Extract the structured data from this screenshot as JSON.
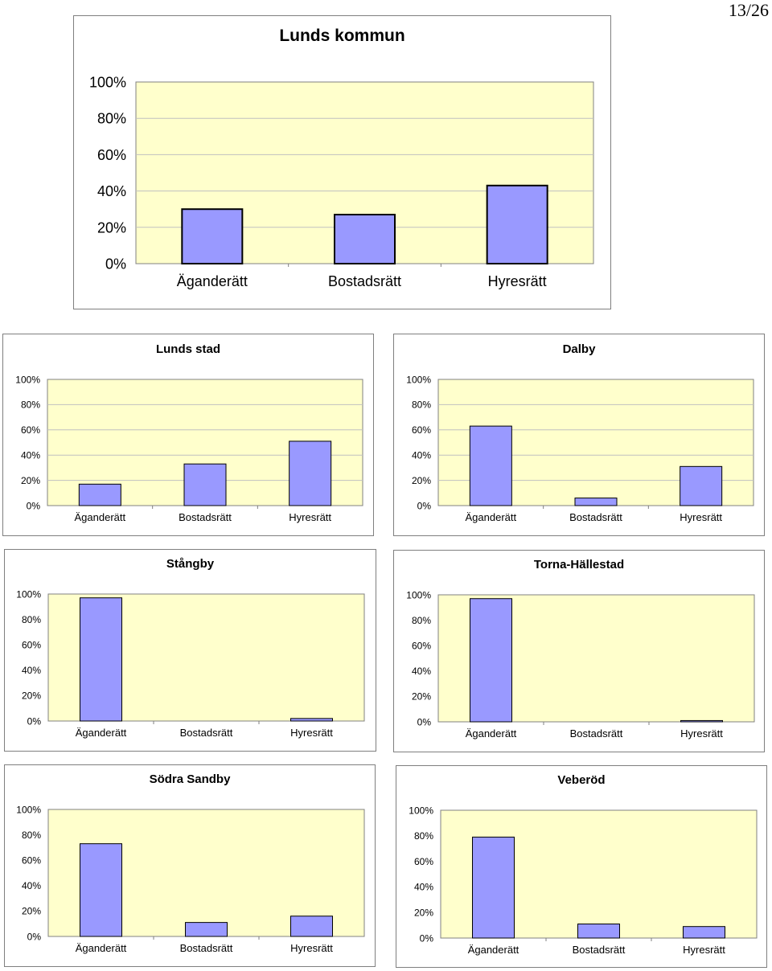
{
  "page_number": "13/26",
  "colors": {
    "plot_bg": "#ffffcc",
    "bar_fill": "#9999ff",
    "bar_stroke": "#000000",
    "grid": "#c0c0c0",
    "axis": "#808080"
  },
  "chart_data": [
    {
      "type": "bar",
      "title": "Lunds kommun",
      "categories": [
        "Äganderätt",
        "Bostadsrätt",
        "Hyresrätt"
      ],
      "values": [
        30,
        27,
        43
      ],
      "yticks": [
        "0%",
        "20%",
        "40%",
        "60%",
        "80%",
        "100%"
      ],
      "ylim": [
        0,
        100
      ],
      "grid": true,
      "legend": false
    },
    {
      "type": "bar",
      "title": "Lunds stad",
      "categories": [
        "Äganderätt",
        "Bostadsrätt",
        "Hyresrätt"
      ],
      "values": [
        17,
        33,
        51
      ],
      "yticks": [
        "0%",
        "20%",
        "40%",
        "60%",
        "80%",
        "100%"
      ],
      "ylim": [
        0,
        100
      ],
      "grid": true,
      "legend": false
    },
    {
      "type": "bar",
      "title": "Dalby",
      "categories": [
        "Äganderätt",
        "Bostadsrätt",
        "Hyresrätt"
      ],
      "values": [
        63,
        6,
        31
      ],
      "yticks": [
        "0%",
        "20%",
        "40%",
        "60%",
        "80%",
        "100%"
      ],
      "ylim": [
        0,
        100
      ],
      "grid": true,
      "legend": false
    },
    {
      "type": "bar",
      "title": "Stångby",
      "categories": [
        "Äganderätt",
        "Bostadsrätt",
        "Hyresrätt"
      ],
      "values": [
        97,
        0,
        2
      ],
      "yticks": [
        "0%",
        "20%",
        "40%",
        "60%",
        "80%",
        "100%"
      ],
      "ylim": [
        0,
        100
      ],
      "grid": false,
      "legend": false
    },
    {
      "type": "bar",
      "title": "Torna-Hällestad",
      "categories": [
        "Äganderätt",
        "Bostadsrätt",
        "Hyresrätt"
      ],
      "values": [
        97,
        0,
        1
      ],
      "yticks": [
        "0%",
        "20%",
        "40%",
        "60%",
        "80%",
        "100%"
      ],
      "ylim": [
        0,
        100
      ],
      "grid": false,
      "legend": false
    },
    {
      "type": "bar",
      "title": "Södra Sandby",
      "categories": [
        "Äganderätt",
        "Bostadsrätt",
        "Hyresrätt"
      ],
      "values": [
        73,
        11,
        16
      ],
      "yticks": [
        "0%",
        "20%",
        "40%",
        "60%",
        "80%",
        "100%"
      ],
      "ylim": [
        0,
        100
      ],
      "grid": false,
      "legend": false
    },
    {
      "type": "bar",
      "title": "Veberöd",
      "categories": [
        "Äganderätt",
        "Bostadsrätt",
        "Hyresrätt"
      ],
      "values": [
        79,
        11,
        9
      ],
      "yticks": [
        "0%",
        "20%",
        "40%",
        "60%",
        "80%",
        "100%"
      ],
      "ylim": [
        0,
        100
      ],
      "grid": false,
      "legend": false
    }
  ]
}
